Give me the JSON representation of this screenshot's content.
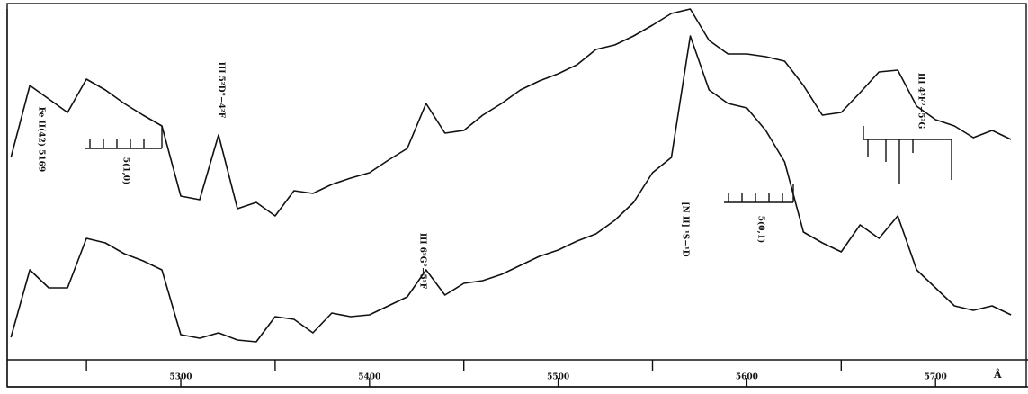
{
  "chart_data": {
    "type": "line",
    "x_label": "Å",
    "x": [
      5210,
      5220,
      5230,
      5240,
      5250,
      5260,
      5270,
      5280,
      5290,
      5300,
      5310,
      5320,
      5330,
      5340,
      5350,
      5360,
      5370,
      5380,
      5390,
      5400,
      5410,
      5420,
      5430,
      5440,
      5450,
      5460,
      5470,
      5480,
      5490,
      5500,
      5510,
      5520,
      5530,
      5540,
      5550,
      5560,
      5570,
      5580,
      5590,
      5600,
      5610,
      5620,
      5630,
      5640,
      5650,
      5660,
      5670,
      5680,
      5690,
      5700,
      5710,
      5720,
      5730,
      5740
    ],
    "series": [
      {
        "color": "#111111",
        "values": [
          225,
          305,
          290,
          275,
          312,
          300,
          285,
          272,
          260,
          182,
          178,
          250,
          168,
          175,
          160,
          188,
          185,
          195,
          202,
          208,
          222,
          235,
          285,
          252,
          255,
          272,
          285,
          300,
          310,
          318,
          328,
          345,
          350,
          360,
          372,
          385,
          390,
          355,
          340,
          340,
          337,
          332,
          305,
          272,
          275,
          297,
          320,
          322,
          282,
          267,
          260,
          247,
          255,
          245
        ]
      },
      {
        "color": "#111111",
        "values": [
          25,
          100,
          80,
          80,
          135,
          130,
          118,
          110,
          100,
          28,
          24,
          30,
          22,
          20,
          48,
          45,
          30,
          52,
          48,
          50,
          60,
          70,
          100,
          72,
          85,
          88,
          95,
          105,
          115,
          122,
          132,
          140,
          155,
          175,
          208,
          225,
          360,
          300,
          285,
          280,
          255,
          220,
          142,
          130,
          120,
          150,
          135,
          160,
          100,
          80,
          60,
          55,
          60,
          50
        ]
      }
    ],
    "xlim": [
      5208,
      5749
    ],
    "ylim": [
      0,
      400
    ],
    "xticks": [
      5300,
      5400,
      5500,
      5600,
      5700
    ],
    "xminorticks": [
      5250,
      5350,
      5450,
      5550,
      5650
    ],
    "annotations": [
      "Fe II(42) 5169",
      "5(1,0)",
      "III 5²D°−4²F",
      "III 6²G°−5²F",
      "[N II] ¹S−¹D",
      "5(0,1)",
      "III 4²F°−5²G"
    ]
  }
}
